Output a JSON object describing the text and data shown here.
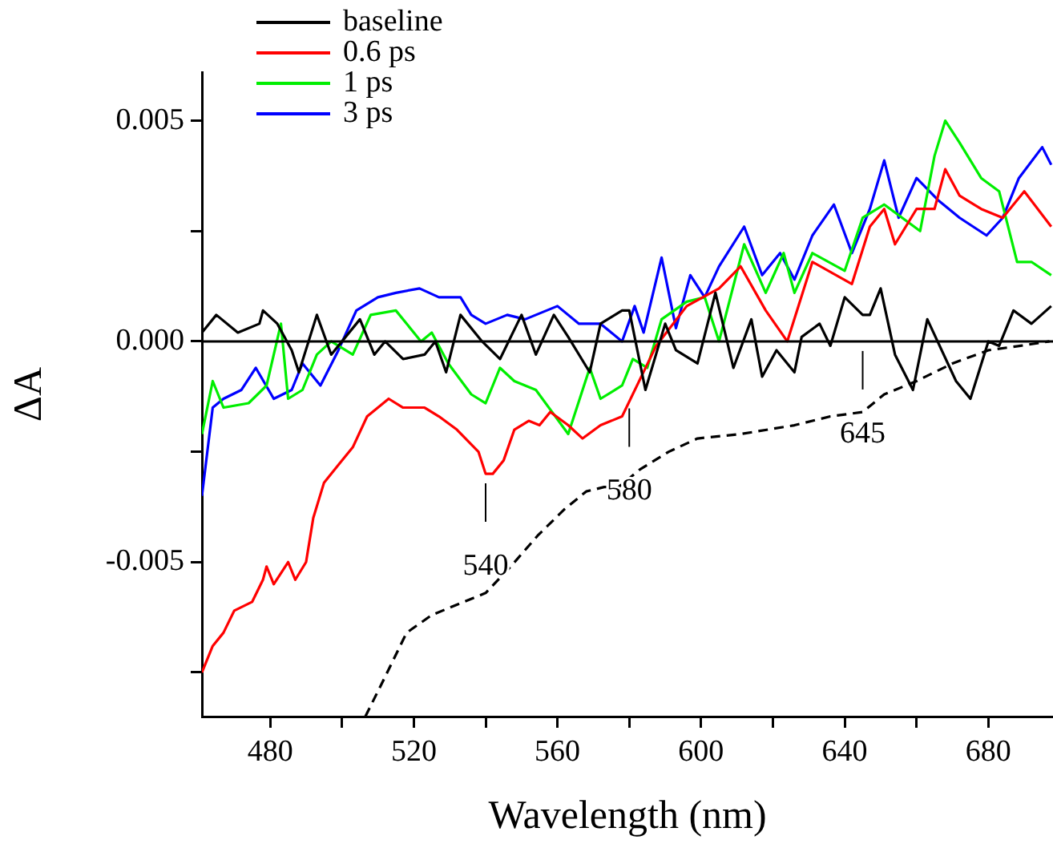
{
  "chart_data": {
    "type": "line",
    "xlabel": "Wavelength (nm)",
    "ylabel": "ΔA",
    "xlim": [
      461,
      698
    ],
    "ylim": [
      -0.0085,
      0.0061
    ],
    "xticks": [
      480,
      {
        "value": 500,
        "label": null
      },
      520,
      {
        "value": 540,
        "label": null
      },
      560,
      {
        "value": 580,
        "label": null
      },
      600,
      {
        "value": 620,
        "label": null
      },
      640,
      {
        "value": 660,
        "label": null
      },
      680
    ],
    "yticks": [
      {
        "value": -0.0075,
        "label": null
      },
      {
        "value": -0.005,
        "label": "-0.005"
      },
      {
        "value": -0.0025,
        "label": null
      },
      {
        "value": 0,
        "label": "0.000"
      },
      {
        "value": 0.0025,
        "label": null
      },
      {
        "value": 0.005,
        "label": "0.005"
      }
    ],
    "grid": false,
    "legend": "top left",
    "marker": "none",
    "ref_lines": [
      {
        "axis": "y",
        "value": 0,
        "color": "#000000"
      }
    ],
    "annotations": [
      {
        "text": "540",
        "x": 540,
        "y": -0.003
      },
      {
        "text": "580",
        "x": 580,
        "y": -0.0013
      },
      {
        "text": "645",
        "x": 645,
        "y": 0
      }
    ],
    "series": [
      {
        "name": "baseline",
        "color": "#000000",
        "x": [
          461,
          465,
          471,
          477,
          478,
          482,
          486,
          488,
          493,
          497,
          505,
          509,
          512,
          517,
          523,
          526,
          529,
          533,
          539,
          544,
          550,
          554,
          559,
          563,
          569,
          572,
          578,
          580,
          584.5,
          590,
          593,
          599,
          604,
          609,
          614,
          617,
          621,
          626,
          628,
          633,
          636,
          640,
          645,
          647,
          650,
          654,
          659,
          663,
          671,
          675,
          680,
          683,
          687,
          692,
          697.5
        ],
        "values": [
          0.0002,
          0.0006,
          0.0002,
          0.0004,
          0.0007,
          0.0004,
          -0.0002,
          -0.0007,
          0.0006,
          -0.0003,
          0.0005,
          -0.0003,
          0,
          -0.0004,
          -0.0003,
          0,
          -0.0007,
          0.0006,
          0,
          -0.0004,
          0.0006,
          -0.0003,
          0.0006,
          0.0001,
          -0.0007,
          0.0004,
          0.0007,
          0.0007,
          -0.0011,
          0.0004,
          -0.0002,
          -0.0005,
          0.0011,
          -0.0006,
          0.0005,
          -0.0008,
          -0.0002,
          -0.0007,
          0.0001,
          0.0004,
          -0.0001,
          0.001,
          0.0006,
          0.0006,
          0.0012,
          -0.0003,
          -0.0011,
          0.0005,
          -0.0009,
          -0.0013,
          0,
          -0.0001,
          0.0007,
          0.0004,
          0.0008
        ]
      },
      {
        "name": "0.6 ps",
        "color": "#ff0000",
        "x": [
          461,
          464,
          467,
          470,
          475,
          478,
          479,
          481,
          485,
          487,
          490,
          492,
          495,
          499,
          503,
          507,
          513,
          517,
          523,
          527,
          532,
          538,
          540,
          542,
          545,
          548,
          552,
          555,
          558,
          563,
          567,
          572,
          578,
          587.5,
          596,
          605,
          611,
          618,
          624,
          631,
          642,
          647,
          651,
          654,
          660,
          665,
          668,
          672,
          678,
          684,
          690,
          697.5
        ],
        "values": [
          -0.0075,
          -0.0069,
          -0.0066,
          -0.0061,
          -0.0059,
          -0.0054,
          -0.0051,
          -0.0055,
          -0.005,
          -0.0054,
          -0.005,
          -0.004,
          -0.0032,
          -0.0028,
          -0.0024,
          -0.0017,
          -0.0013,
          -0.0015,
          -0.0015,
          -0.0017,
          -0.002,
          -0.0025,
          -0.003,
          -0.003,
          -0.0027,
          -0.002,
          -0.0018,
          -0.0019,
          -0.0016,
          -0.0019,
          -0.0022,
          -0.0019,
          -0.0017,
          -0.0001,
          0.0008,
          0.0012,
          0.0017,
          0.0007,
          0,
          0.0018,
          0.0013,
          0.0026,
          0.003,
          0.0022,
          0.003,
          0.003,
          0.0039,
          0.0033,
          0.003,
          0.0028,
          0.0034,
          0.0026
        ]
      },
      {
        "name": "1 ps",
        "color": "#00ee00",
        "x": [
          461,
          464,
          467,
          474,
          479,
          483,
          485,
          489,
          493,
          497,
          503,
          508,
          515,
          522,
          525,
          529.6,
          536,
          540,
          544,
          548,
          554,
          563,
          569,
          572,
          578,
          581,
          585,
          589,
          596,
          601,
          605,
          612,
          618,
          623,
          626,
          631,
          640,
          645,
          651,
          661,
          665,
          668,
          672,
          678,
          683,
          688,
          692,
          697.5
        ],
        "values": [
          -0.0021,
          -0.0009,
          -0.0015,
          -0.0014,
          -0.001,
          0.0004,
          -0.0013,
          -0.0011,
          -0.0003,
          0,
          -0.0003,
          0.0006,
          0.0007,
          0,
          0.0002,
          -0.0005,
          -0.0012,
          -0.0014,
          -0.0006,
          -0.0009,
          -0.0011,
          -0.0021,
          -0.0006,
          -0.0013,
          -0.001,
          -0.0004,
          -0.0006,
          0.0005,
          0.0009,
          0.001,
          0,
          0.0022,
          0.0011,
          0.002,
          0.0011,
          0.002,
          0.0016,
          0.0028,
          0.0031,
          0.0025,
          0.0042,
          0.005,
          0.0045,
          0.0037,
          0.0034,
          0.0018,
          0.0018,
          0.0015
        ]
      },
      {
        "name": "3 ps",
        "color": "#0000ff",
        "x": [
          461,
          464,
          467,
          472,
          476,
          481,
          486,
          489,
          494,
          499,
          504,
          510,
          515,
          521.6,
          527,
          533,
          536,
          540,
          546,
          551,
          560,
          566,
          572,
          578,
          581.5,
          584,
          589,
          593,
          597,
          601,
          605,
          612,
          617,
          622,
          626,
          631,
          637,
          642,
          647,
          651,
          655,
          660,
          666,
          672,
          679.5,
          684,
          688.5,
          695,
          697.5
        ],
        "values": [
          -0.0035,
          -0.0015,
          -0.0013,
          -0.0011,
          -0.0006,
          -0.0013,
          -0.0011,
          -0.0005,
          -0.001,
          -0.0002,
          0.0007,
          0.001,
          0.0011,
          0.0012,
          0.001,
          0.001,
          0.0006,
          0.0004,
          0.0006,
          0.0005,
          0.0008,
          0.0004,
          0.0004,
          0,
          0.0008,
          0.0002,
          0.0019,
          0.0003,
          0.0015,
          0.001,
          0.0017,
          0.0026,
          0.0015,
          0.002,
          0.0014,
          0.0024,
          0.0031,
          0.002,
          0.003,
          0.0041,
          0.0028,
          0.0037,
          0.0032,
          0.0028,
          0.0024,
          0.0028,
          0.0037,
          0.0044,
          0.004
        ]
      },
      {
        "color": "#000000",
        "line_style": "dashed",
        "x": [
          506.5,
          512,
          518,
          525,
          534,
          540,
          547,
          554.5,
          562,
          568,
          573,
          577,
          583,
          591,
          599,
          611,
          626,
          636,
          645,
          651,
          660,
          670,
          680,
          689,
          697
        ],
        "values": [
          -0.0085,
          -0.0076,
          -0.0066,
          -0.0062,
          -0.0059,
          -0.0057,
          -0.0051,
          -0.0044,
          -0.0038,
          -0.0034,
          -0.0033,
          -0.0033,
          -0.0029,
          -0.0025,
          -0.0022,
          -0.0021,
          -0.0019,
          -0.0017,
          -0.0016,
          -0.0012,
          -0.0009,
          -0.0005,
          -0.0002,
          -0.0001,
          0
        ]
      }
    ]
  }
}
